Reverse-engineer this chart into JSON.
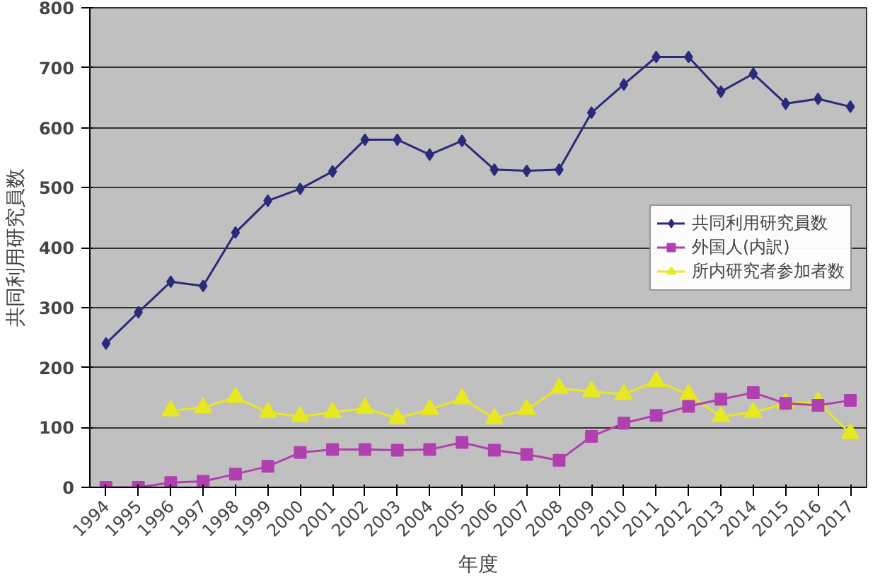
{
  "chart_data": {
    "type": "line",
    "xlabel": "年度",
    "ylabel": "共同利用研究員数",
    "categories": [
      "1994",
      "1995",
      "1996",
      "1997",
      "1998",
      "1999",
      "2000",
      "2001",
      "2002",
      "2003",
      "2004",
      "2005",
      "2006",
      "2007",
      "2008",
      "2009",
      "2010",
      "2011",
      "2012",
      "2013",
      "2014",
      "2015",
      "2016",
      "2017"
    ],
    "series": [
      {
        "name": "共同利用研究員数",
        "color": "#2b2a7a",
        "marker": "diamond",
        "values": [
          240,
          292,
          343,
          336,
          425,
          478,
          498,
          527,
          580,
          580,
          555,
          578,
          530,
          528,
          530,
          625,
          672,
          718,
          718,
          660,
          690,
          640,
          648,
          635
        ]
      },
      {
        "name": "外国人(内訳)",
        "color": "#b040b0",
        "marker": "square",
        "values": [
          0,
          0,
          8,
          10,
          22,
          35,
          58,
          63,
          63,
          62,
          63,
          75,
          62,
          55,
          45,
          85,
          107,
          120,
          135,
          147,
          158,
          140,
          137,
          145
        ]
      },
      {
        "name": "所内研究者参加者数",
        "color": "#e8e820",
        "marker": "triangle",
        "values": [
          null,
          null,
          128,
          133,
          150,
          125,
          118,
          125,
          132,
          115,
          130,
          148,
          115,
          130,
          165,
          160,
          155,
          177,
          155,
          118,
          125,
          140,
          142,
          90
        ]
      }
    ],
    "ylim": [
      0,
      800
    ],
    "yticks": [
      0,
      100,
      200,
      300,
      400,
      500,
      600,
      700,
      800
    ],
    "grid": "y",
    "legend": "right",
    "line_style": "solid"
  }
}
